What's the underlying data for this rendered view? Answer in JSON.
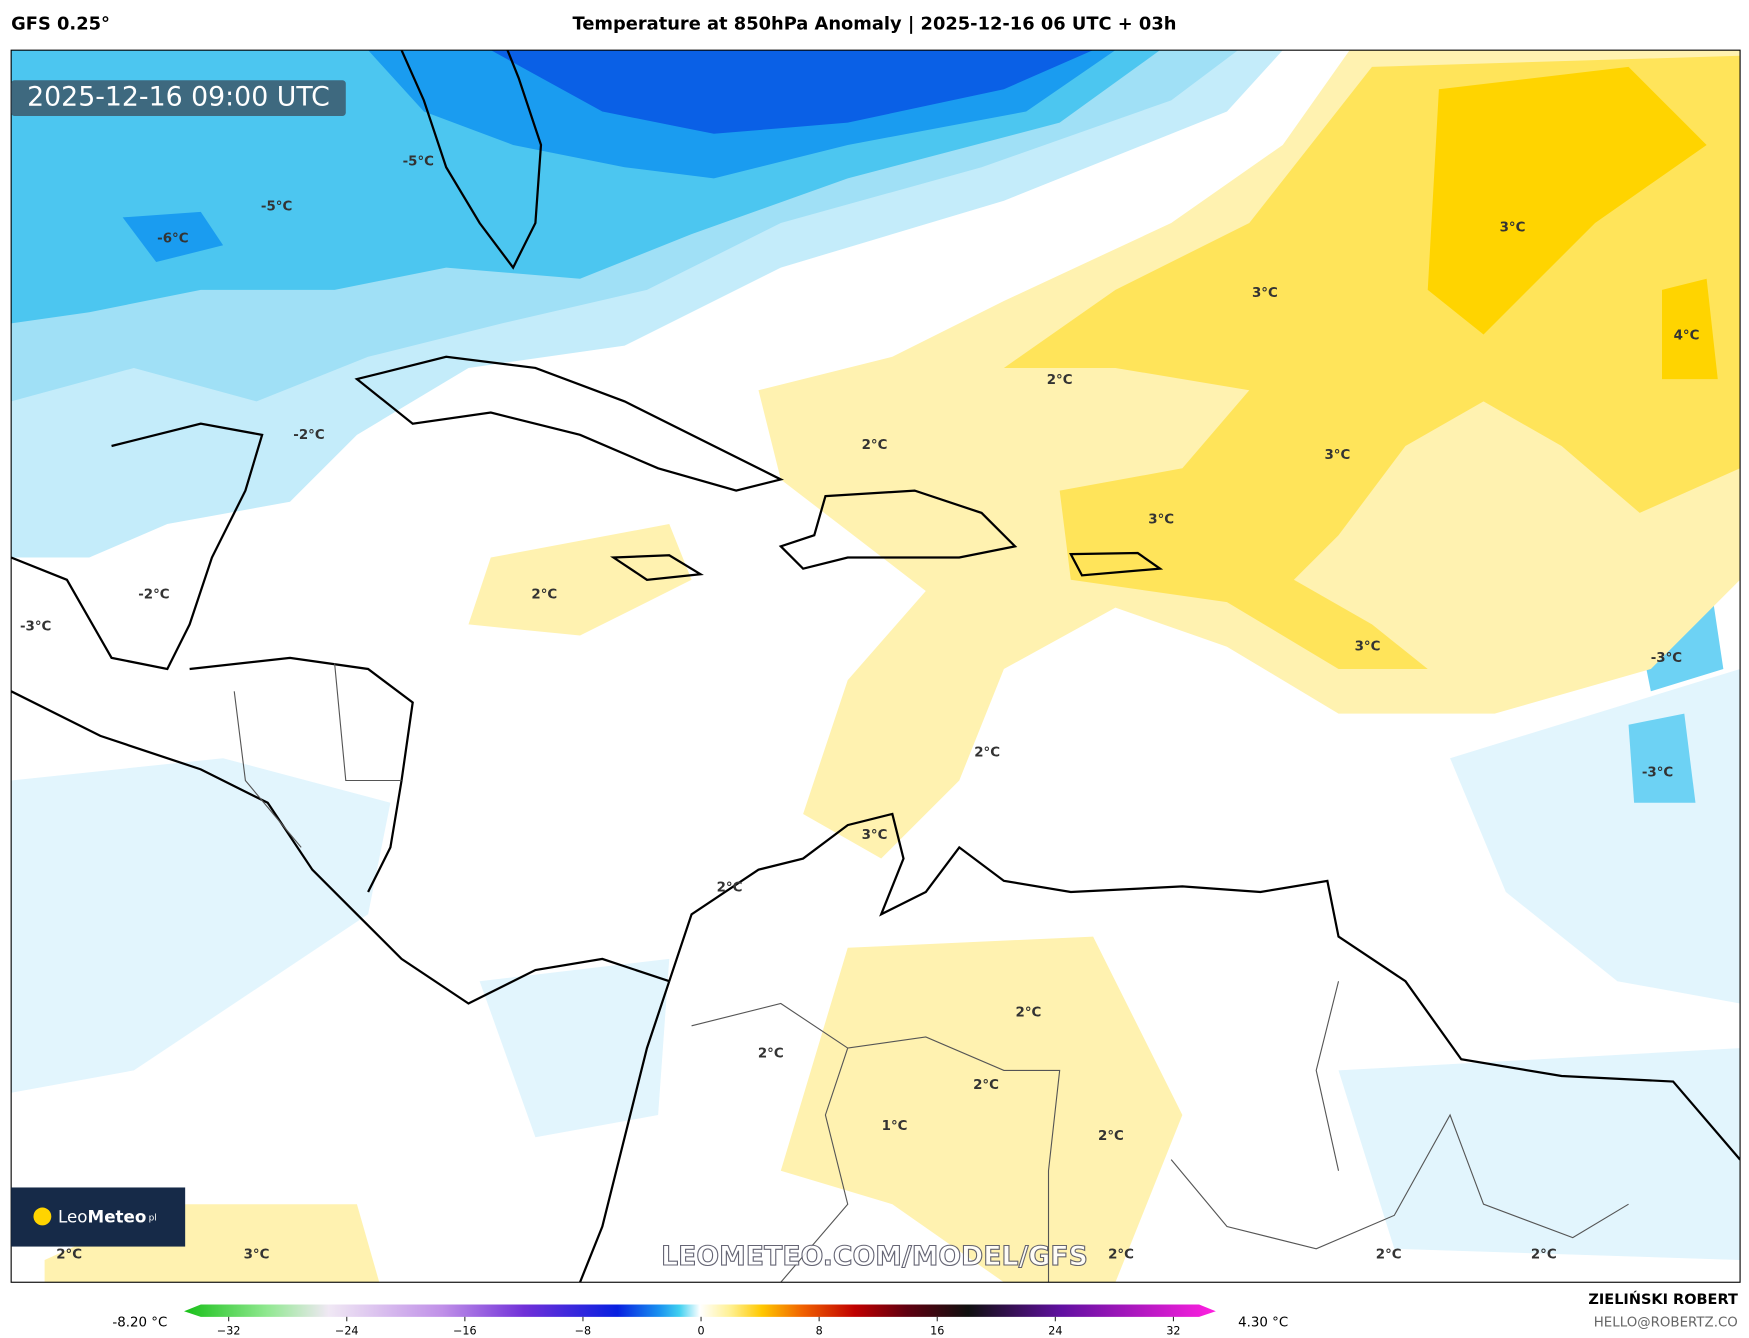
{
  "header": {
    "model": "GFS 0.25°",
    "title": "Temperature at 850hPa Anomaly | 2025-12-16 06 UTC + 03h"
  },
  "map": {
    "valid_time": "2025-12-16 09:00 UTC",
    "watermark": "LEOMETEO.COM/MODEL/GFS",
    "logo": {
      "light": "Leo",
      "bold": "Meteo",
      "suffix": "pl"
    },
    "labels": [
      "-5°C",
      "-5°C",
      "-6°C",
      "-2°C",
      "-2°C",
      "-3°C",
      "2°C",
      "2°C",
      "2°C",
      "3°C",
      "3°C",
      "4°C",
      "3°C",
      "3°C",
      "3°C",
      "-3°C",
      "-3°C",
      "2°C",
      "3°C",
      "2°C",
      "2°C",
      "2°C",
      "2°C",
      "1°C",
      "2°C",
      "2°C",
      "3°C",
      "2°C",
      "2°C",
      "2°C"
    ]
  },
  "colorbar": {
    "min_label": "-8.20 °C",
    "max_label": "4.30 °C",
    "ticks": [
      "−32",
      "−24",
      "−16",
      "−8",
      "0",
      "8",
      "16",
      "24",
      "32"
    ]
  },
  "credit": {
    "author": "ZIELIŃSKI ROBERT",
    "email": "HELLO@ROBERTZ.CO"
  }
}
